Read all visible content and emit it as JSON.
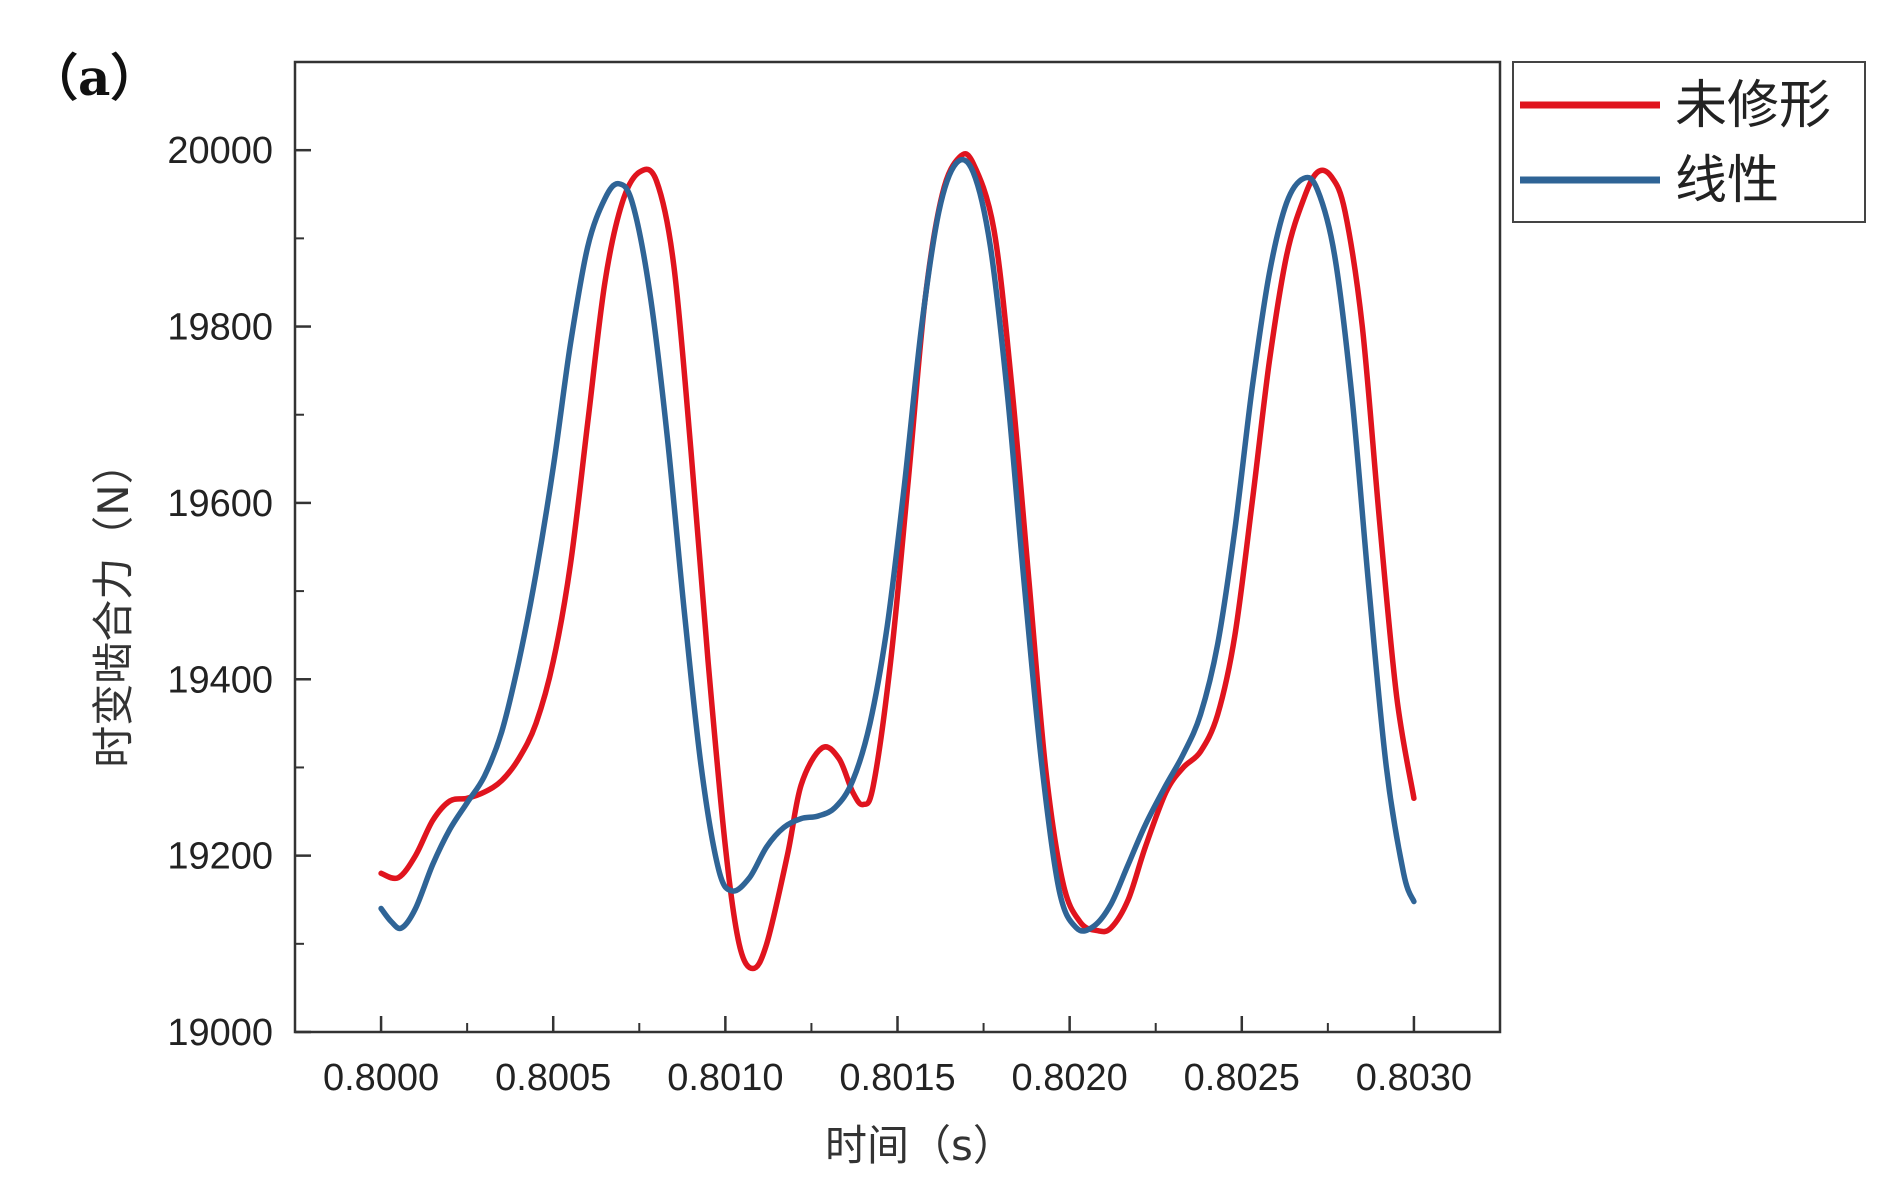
{
  "panel_label": "（a）",
  "colors": {
    "series_red": "#e0141e",
    "series_blue": "#2f6496",
    "axis": "#333333"
  },
  "chart_data": {
    "type": "line",
    "title": "",
    "xlabel": "时间（s）",
    "ylabel": "时变啮合力（N）",
    "xlim": [
      0.79975,
      0.80325
    ],
    "ylim": [
      19000,
      20100
    ],
    "xticks": [
      0.8,
      0.8005,
      0.801,
      0.8015,
      0.802,
      0.8025,
      0.803
    ],
    "xtick_labels": [
      "0.8000",
      "0.8005",
      "0.8010",
      "0.8015",
      "0.8020",
      "0.8025",
      "0.8030"
    ],
    "yticks": [
      19000,
      19200,
      19400,
      19600,
      19800,
      20000
    ],
    "ytick_labels": [
      "19000",
      "19200",
      "19400",
      "19600",
      "19800",
      "20000"
    ],
    "legend_position": "outside-top-right",
    "series": [
      {
        "name": "未修形",
        "color": "#e0141e",
        "points": [
          [
            0.8,
            19180
          ],
          [
            0.80005,
            19175
          ],
          [
            0.8001,
            19200
          ],
          [
            0.80015,
            19240
          ],
          [
            0.8002,
            19262
          ],
          [
            0.80025,
            19265
          ],
          [
            0.8003,
            19272
          ],
          [
            0.80035,
            19285
          ],
          [
            0.8004,
            19310
          ],
          [
            0.80045,
            19350
          ],
          [
            0.8005,
            19420
          ],
          [
            0.80055,
            19530
          ],
          [
            0.8006,
            19690
          ],
          [
            0.80065,
            19850
          ],
          [
            0.8007,
            19940
          ],
          [
            0.80075,
            19975
          ],
          [
            0.8008,
            19965
          ],
          [
            0.80085,
            19870
          ],
          [
            0.8009,
            19660
          ],
          [
            0.80095,
            19420
          ],
          [
            0.801,
            19210
          ],
          [
            0.80104,
            19100
          ],
          [
            0.80108,
            19072
          ],
          [
            0.80112,
            19100
          ],
          [
            0.80118,
            19200
          ],
          [
            0.80122,
            19280
          ],
          [
            0.80128,
            19322
          ],
          [
            0.80133,
            19310
          ],
          [
            0.80137,
            19272
          ],
          [
            0.8014,
            19258
          ],
          [
            0.80143,
            19280
          ],
          [
            0.80148,
            19420
          ],
          [
            0.80153,
            19620
          ],
          [
            0.80158,
            19830
          ],
          [
            0.80163,
            19950
          ],
          [
            0.80168,
            19992
          ],
          [
            0.80172,
            19985
          ],
          [
            0.80178,
            19910
          ],
          [
            0.80183,
            19740
          ],
          [
            0.80188,
            19520
          ],
          [
            0.80193,
            19300
          ],
          [
            0.80198,
            19170
          ],
          [
            0.80203,
            19125
          ],
          [
            0.80208,
            19115
          ],
          [
            0.80212,
            19118
          ],
          [
            0.80217,
            19150
          ],
          [
            0.80222,
            19210
          ],
          [
            0.80228,
            19272
          ],
          [
            0.80233,
            19300
          ],
          [
            0.80238,
            19318
          ],
          [
            0.80243,
            19360
          ],
          [
            0.80248,
            19450
          ],
          [
            0.80253,
            19600
          ],
          [
            0.80258,
            19760
          ],
          [
            0.80263,
            19880
          ],
          [
            0.80268,
            19945
          ],
          [
            0.80272,
            19975
          ],
          [
            0.80276,
            19970
          ],
          [
            0.8028,
            19930
          ],
          [
            0.80285,
            19800
          ],
          [
            0.8029,
            19580
          ],
          [
            0.80295,
            19380
          ],
          [
            0.803,
            19265
          ]
        ]
      },
      {
        "name": "线性",
        "color": "#2f6496",
        "points": [
          [
            0.8,
            19140
          ],
          [
            0.80003,
            19125
          ],
          [
            0.80006,
            19118
          ],
          [
            0.8001,
            19140
          ],
          [
            0.80015,
            19190
          ],
          [
            0.8002,
            19230
          ],
          [
            0.80025,
            19260
          ],
          [
            0.8003,
            19290
          ],
          [
            0.80035,
            19340
          ],
          [
            0.8004,
            19420
          ],
          [
            0.80045,
            19520
          ],
          [
            0.8005,
            19640
          ],
          [
            0.80055,
            19780
          ],
          [
            0.8006,
            19890
          ],
          [
            0.80065,
            19945
          ],
          [
            0.80069,
            19962
          ],
          [
            0.80073,
            19940
          ],
          [
            0.80078,
            19840
          ],
          [
            0.80083,
            19680
          ],
          [
            0.80088,
            19480
          ],
          [
            0.80093,
            19300
          ],
          [
            0.80098,
            19185
          ],
          [
            0.80102,
            19160
          ],
          [
            0.80107,
            19175
          ],
          [
            0.80112,
            19210
          ],
          [
            0.80117,
            19232
          ],
          [
            0.80122,
            19242
          ],
          [
            0.80127,
            19245
          ],
          [
            0.80132,
            19255
          ],
          [
            0.80137,
            19285
          ],
          [
            0.80142,
            19350
          ],
          [
            0.80147,
            19460
          ],
          [
            0.80152,
            19620
          ],
          [
            0.80157,
            19800
          ],
          [
            0.80162,
            19930
          ],
          [
            0.80167,
            19985
          ],
          [
            0.80172,
            19975
          ],
          [
            0.80177,
            19890
          ],
          [
            0.80182,
            19720
          ],
          [
            0.80187,
            19500
          ],
          [
            0.80192,
            19300
          ],
          [
            0.80197,
            19160
          ],
          [
            0.80202,
            19118
          ],
          [
            0.80207,
            19120
          ],
          [
            0.80212,
            19145
          ],
          [
            0.80217,
            19190
          ],
          [
            0.80222,
            19235
          ],
          [
            0.80228,
            19280
          ],
          [
            0.80233,
            19315
          ],
          [
            0.80238,
            19360
          ],
          [
            0.80243,
            19440
          ],
          [
            0.80248,
            19570
          ],
          [
            0.80253,
            19730
          ],
          [
            0.80258,
            19860
          ],
          [
            0.80263,
            19940
          ],
          [
            0.80268,
            19968
          ],
          [
            0.80272,
            19955
          ],
          [
            0.80277,
            19880
          ],
          [
            0.80282,
            19720
          ],
          [
            0.80287,
            19500
          ],
          [
            0.80292,
            19300
          ],
          [
            0.80297,
            19180
          ],
          [
            0.803,
            19148
          ]
        ]
      }
    ]
  }
}
